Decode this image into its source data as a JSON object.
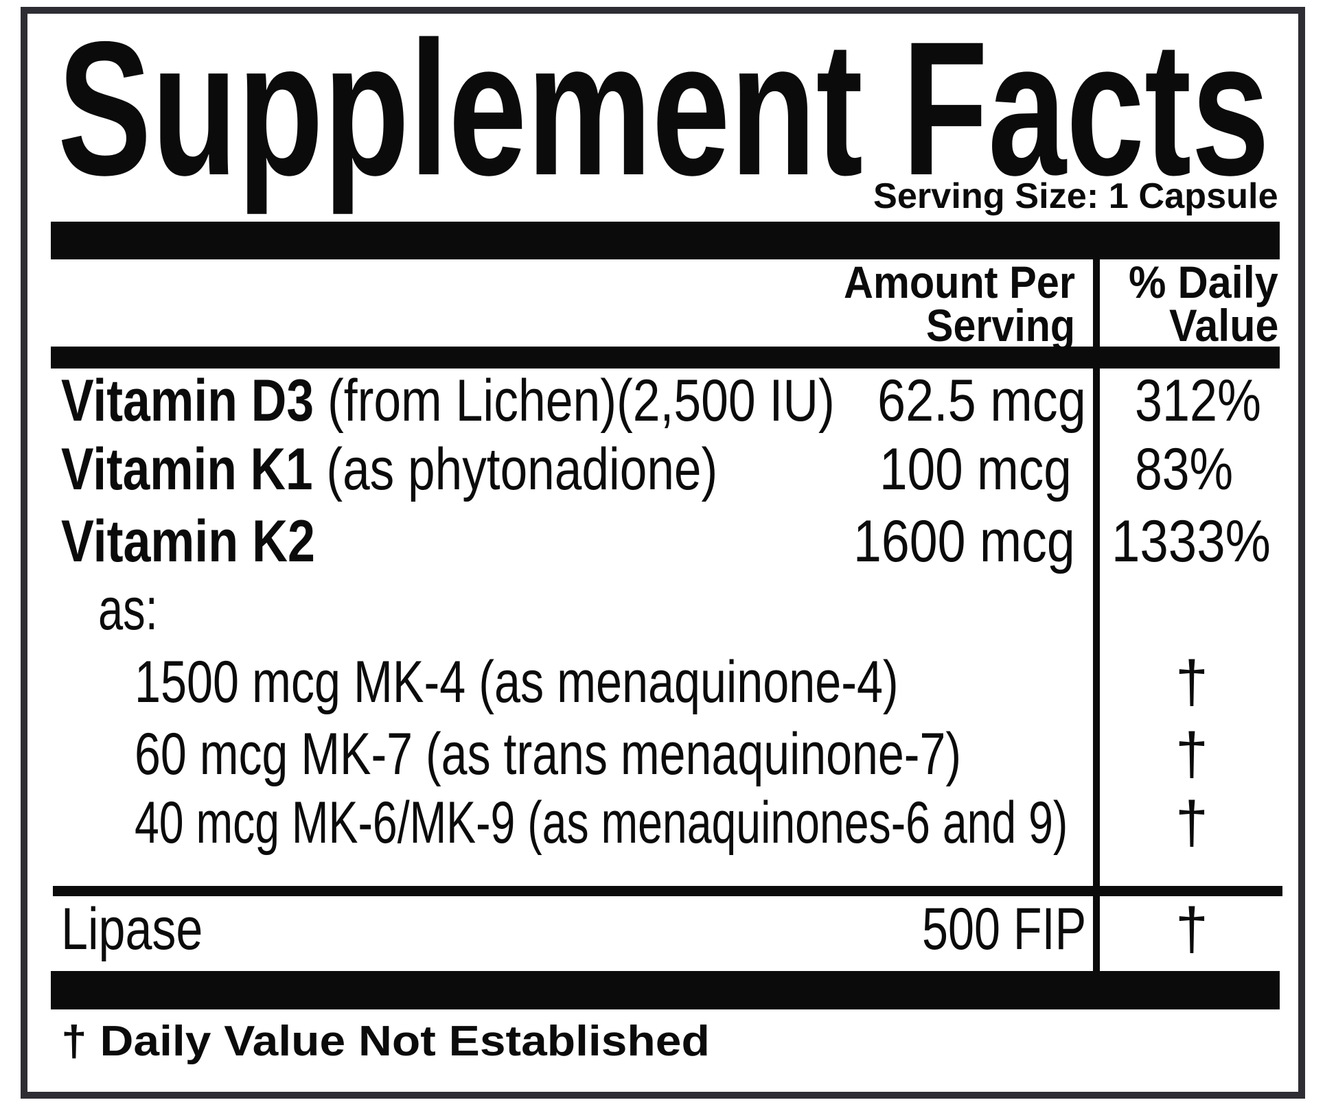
{
  "title": "Supplement Facts",
  "serving_size": "Serving Size: 1 Capsule",
  "header": {
    "amount_line1": "Amount Per",
    "amount_line2": "Serving",
    "dv_line1": "% Daily",
    "dv_line2": "Value"
  },
  "rows": [
    {
      "name": "Vitamin D3",
      "detail": " (from Lichen)(2,500 IU)",
      "amount": "62.5 mcg",
      "dv": "312%"
    },
    {
      "name": "Vitamin K1",
      "detail": " (as phytonadione)",
      "amount": "100 mcg",
      "dv": "83%"
    },
    {
      "name": "Vitamin K2",
      "detail": "",
      "amount": "1600 mcg",
      "dv": "1333%"
    }
  ],
  "as_label": "as:",
  "sub_rows": [
    {
      "text": "1500 mcg MK-4 (as menaquinone-4)",
      "dv": "†"
    },
    {
      "text": "60 mcg MK-7 (as trans menaquinone-7)",
      "dv": "†"
    },
    {
      "text": "40 mcg MK-6/MK-9 (as menaquinones-6 and 9)",
      "dv": "†"
    }
  ],
  "lipase": {
    "name": "Lipase",
    "amount": "500 FIP",
    "dv": "†"
  },
  "footnote": "† Daily Value Not Established"
}
